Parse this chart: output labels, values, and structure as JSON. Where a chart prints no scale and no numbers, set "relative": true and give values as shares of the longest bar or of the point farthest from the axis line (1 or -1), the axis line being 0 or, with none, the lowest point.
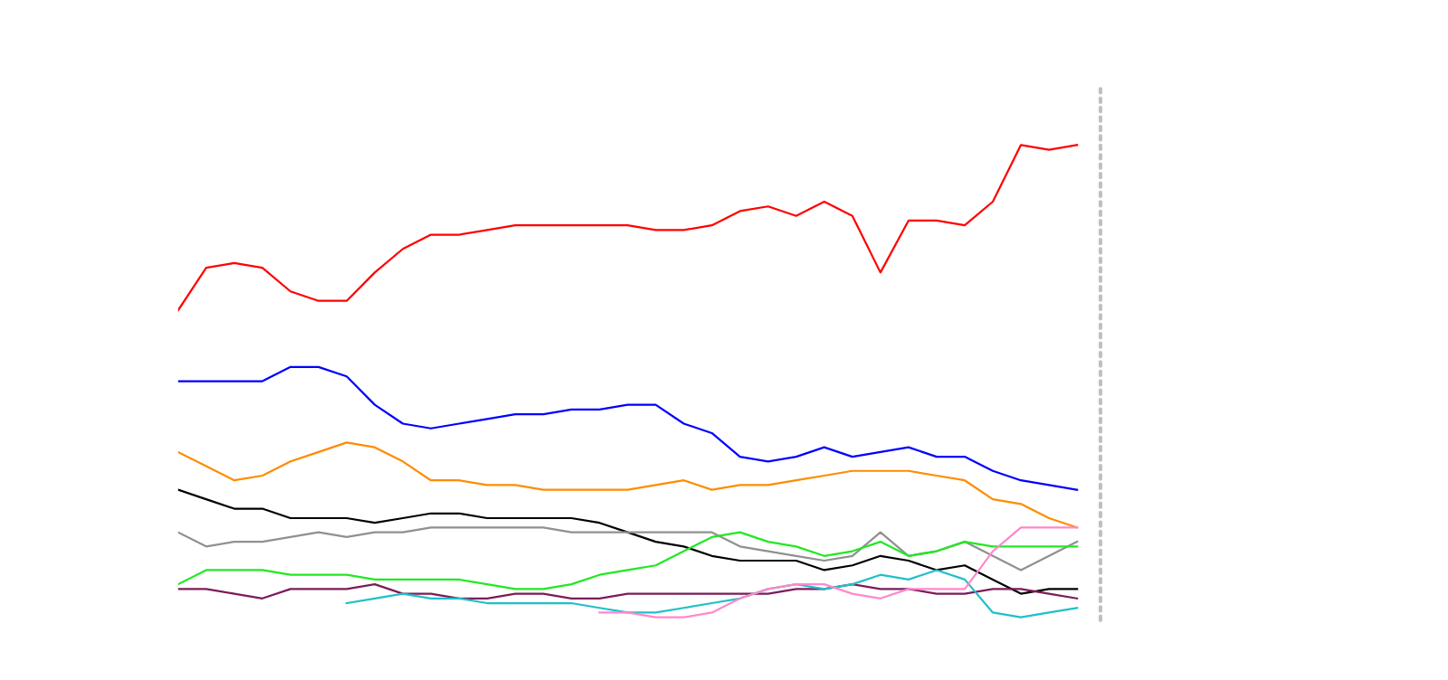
{
  "chart_data": {
    "type": "line",
    "relative": true,
    "legend": false,
    "marker": "none",
    "line_style": "solid",
    "categories": [
      null,
      null,
      null,
      null,
      null,
      null,
      null,
      null,
      null,
      null,
      null,
      null,
      null,
      null,
      null,
      null,
      null,
      null,
      null,
      null,
      null,
      null,
      null,
      null,
      null,
      null,
      null,
      null,
      null,
      null,
      null,
      null,
      null
    ],
    "series": [
      {
        "color": "#ff0000",
        "values": [
          0.65,
          0.74,
          0.75,
          0.74,
          0.69,
          0.67,
          0.67,
          0.73,
          0.78,
          0.81,
          0.81,
          0.82,
          0.83,
          0.83,
          0.83,
          0.83,
          0.83,
          0.82,
          0.82,
          0.83,
          0.86,
          0.87,
          0.85,
          0.88,
          0.85,
          0.73,
          0.84,
          0.84,
          0.83,
          0.88,
          1.0,
          0.99,
          1.0
        ]
      },
      {
        "color": "#0000ff",
        "values": [
          0.5,
          0.5,
          0.5,
          0.5,
          0.53,
          0.53,
          0.51,
          0.45,
          0.41,
          0.4,
          0.41,
          0.42,
          0.43,
          0.43,
          0.44,
          0.44,
          0.45,
          0.45,
          0.41,
          0.39,
          0.34,
          0.33,
          0.34,
          0.36,
          0.34,
          0.35,
          0.36,
          0.34,
          0.34,
          0.31,
          0.29,
          0.28,
          0.27
        ]
      },
      {
        "color": "#ff8c00",
        "values": [
          0.35,
          0.32,
          0.29,
          0.3,
          0.33,
          0.35,
          0.37,
          0.36,
          0.33,
          0.29,
          0.29,
          0.28,
          0.28,
          0.27,
          0.27,
          0.27,
          0.27,
          0.28,
          0.29,
          0.27,
          0.28,
          0.28,
          0.29,
          0.3,
          0.31,
          0.31,
          0.31,
          0.3,
          0.29,
          0.25,
          0.24,
          0.21,
          0.19
        ]
      },
      {
        "color": "#000000",
        "values": [
          0.27,
          0.25,
          0.23,
          0.23,
          0.21,
          0.21,
          0.21,
          0.2,
          0.21,
          0.22,
          0.22,
          0.21,
          0.21,
          0.21,
          0.21,
          0.2,
          0.18,
          0.16,
          0.15,
          0.13,
          0.12,
          0.12,
          0.12,
          0.1,
          0.11,
          0.13,
          0.12,
          0.1,
          0.11,
          0.08,
          0.05,
          0.06,
          0.06
        ]
      },
      {
        "color": "#909090",
        "values": [
          0.18,
          0.15,
          0.16,
          0.16,
          0.17,
          0.18,
          0.17,
          0.18,
          0.18,
          0.19,
          0.19,
          0.19,
          0.19,
          0.19,
          0.18,
          0.18,
          0.18,
          0.18,
          0.18,
          0.18,
          0.15,
          0.14,
          0.13,
          0.12,
          0.13,
          0.18,
          0.13,
          0.14,
          0.16,
          0.13,
          0.1,
          0.13,
          0.16
        ]
      },
      {
        "color": "#22e822",
        "values": [
          0.07,
          0.1,
          0.1,
          0.1,
          0.09,
          0.09,
          0.09,
          0.08,
          0.08,
          0.08,
          0.08,
          0.07,
          0.06,
          0.06,
          0.07,
          0.09,
          0.1,
          0.11,
          0.14,
          0.17,
          0.18,
          0.16,
          0.15,
          0.13,
          0.14,
          0.16,
          0.13,
          0.14,
          0.16,
          0.15,
          0.15,
          0.15,
          0.15
        ]
      },
      {
        "color": "#7b1c5a",
        "values": [
          0.06,
          0.06,
          0.05,
          0.04,
          0.06,
          0.06,
          0.06,
          0.07,
          0.05,
          0.05,
          0.04,
          0.04,
          0.05,
          0.05,
          0.04,
          0.04,
          0.05,
          0.05,
          0.05,
          0.05,
          0.05,
          0.05,
          0.06,
          0.06,
          0.07,
          0.06,
          0.06,
          0.05,
          0.05,
          0.06,
          0.06,
          0.05,
          0.04
        ]
      },
      {
        "color": "#20c0c8",
        "values": [
          null,
          null,
          null,
          null,
          null,
          null,
          0.03,
          0.04,
          0.05,
          0.04,
          0.04,
          0.03,
          0.03,
          0.03,
          0.03,
          0.02,
          0.01,
          0.01,
          0.02,
          0.03,
          0.04,
          0.06,
          0.07,
          0.06,
          0.07,
          0.09,
          0.08,
          0.1,
          0.08,
          0.01,
          0.0,
          0.01,
          0.02
        ]
      },
      {
        "color": "#ff88cc",
        "values": [
          null,
          null,
          null,
          null,
          null,
          null,
          null,
          null,
          null,
          null,
          null,
          null,
          null,
          null,
          null,
          0.01,
          0.01,
          0.0,
          0.0,
          0.01,
          0.04,
          0.06,
          0.07,
          0.07,
          0.05,
          0.04,
          0.06,
          0.06,
          0.06,
          0.14,
          0.19,
          0.19,
          0.19
        ]
      }
    ]
  }
}
